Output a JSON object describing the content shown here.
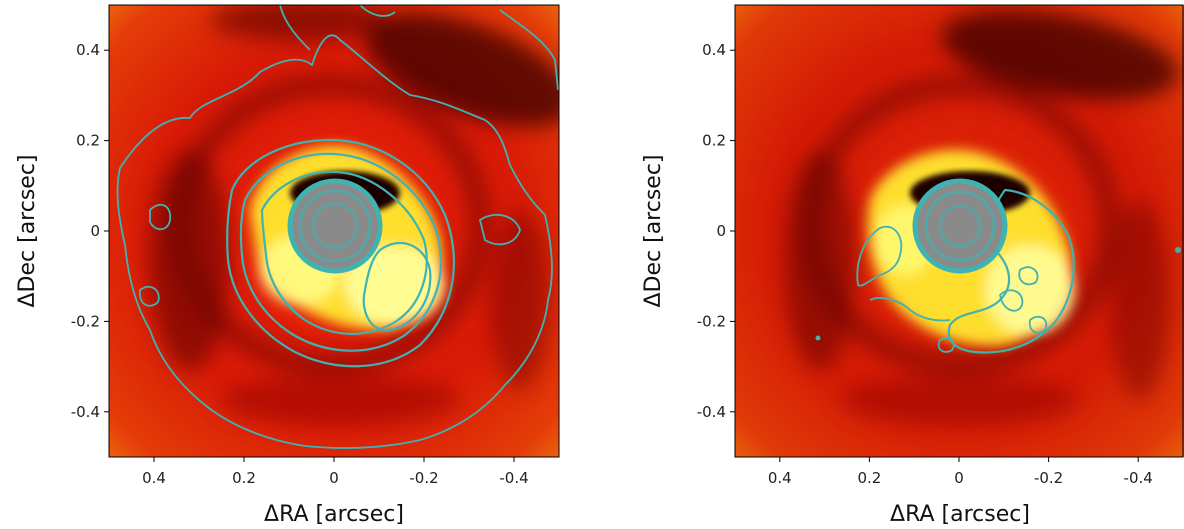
{
  "chart_data": [
    {
      "type": "heatmap",
      "panel": "left",
      "xlabel": "ΔRA [arcsec]",
      "ylabel": "ΔDec [arcsec]",
      "xlim": [
        0.5,
        -0.5
      ],
      "ylim": [
        -0.5,
        0.5
      ],
      "xticks": [
        0.4,
        0.2,
        0,
        -0.2,
        -0.4
      ],
      "xtick_labels": [
        "0.4",
        "0.2",
        "0",
        "-0.2",
        "-0.4"
      ],
      "yticks": [
        0.4,
        0.2,
        0,
        -0.2,
        -0.4
      ],
      "ytick_labels": [
        "0.4",
        "0.2",
        "0",
        "-0.2",
        "-0.4"
      ],
      "colormap": "hot",
      "overlay": "contours",
      "contour_color": "#3fb3b1",
      "mask_radius": 0.1,
      "mask_color": "#808080"
    },
    {
      "type": "heatmap",
      "panel": "right",
      "xlabel": "ΔRA [arcsec]",
      "ylabel": "ΔDec [arcsec]",
      "xlim": [
        0.5,
        -0.5
      ],
      "ylim": [
        -0.5,
        0.5
      ],
      "xticks": [
        0.4,
        0.2,
        0,
        -0.2,
        -0.4
      ],
      "xtick_labels": [
        "0.4",
        "0.2",
        "0",
        "-0.2",
        "-0.4"
      ],
      "yticks": [
        0.4,
        0.2,
        0,
        -0.2,
        -0.4
      ],
      "ytick_labels": [
        "0.4",
        "0.2",
        "0",
        "-0.2",
        "-0.4"
      ],
      "colormap": "hot",
      "overlay": "contours",
      "contour_color": "#3fb3b1",
      "mask_radius": 0.1,
      "mask_color": "#808080"
    }
  ]
}
